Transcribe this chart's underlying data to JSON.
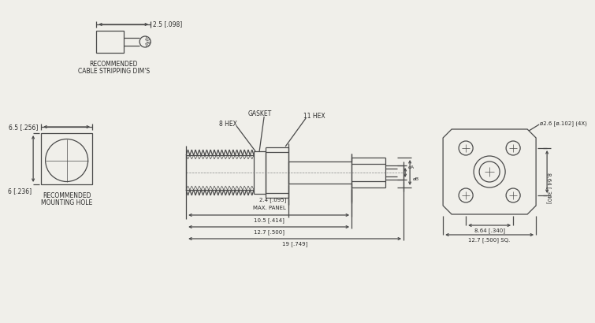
{
  "bg_color": "#f0efea",
  "line_color": "#4a4a4a",
  "text_color": "#2a2a2a",
  "cable_strip_label1": "RECOMMENDED",
  "cable_strip_label2": "CABLE STRIPPING DIM'S",
  "mounting_hole_label1": "RECOMMENDED",
  "mounting_hole_label2": "MOUNTING HOLE",
  "dim_25": "2.5 [.098]",
  "dim_65": "6.5 [.256]",
  "dim_6": "6 [.236]",
  "dim_24": "2.4 [.095]",
  "dim_max_panel": "MAX. PANEL",
  "dim_105": "10.5 [.414]",
  "dim_127a": "12.7 [.500]",
  "dim_19": "19 [.749]",
  "dim_864v": "8.64 [.340]",
  "dim_864h": "8.64 [.340]",
  "dim_127sq": "12.7 [.500] SQ.",
  "dim_phi26": "ø2.6 [ø.102] (4X)",
  "label_gasket": "GASKET",
  "label_8hex": "8 HEX",
  "label_11hex": "11 HEX",
  "label_phiA": "øA",
  "label_phiB": "øB"
}
